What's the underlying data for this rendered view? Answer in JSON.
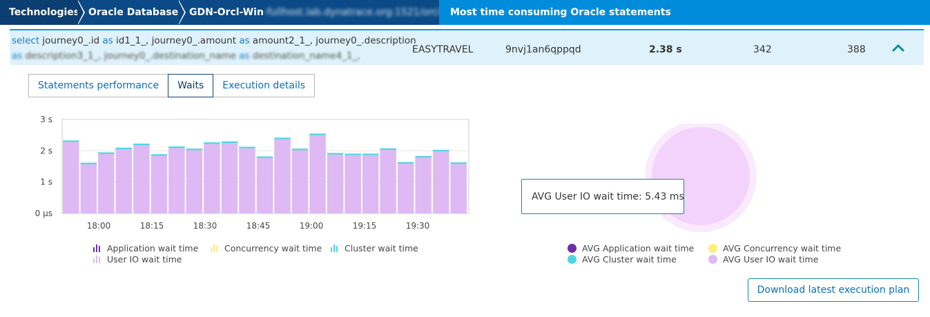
{
  "breadcrumb": {
    "items": [
      {
        "label": "Technologies"
      },
      {
        "label": "Oracle Database"
      },
      {
        "label_prefix": "GDN-Orcl-Win",
        "label_obscured": "-fullhost.lab.dynatrace.org:1521/orcl"
      },
      {
        "label": "Most time consuming Oracle statements"
      }
    ]
  },
  "statement": {
    "sql_line1": [
      {
        "t": "select",
        "kw": true
      },
      {
        "t": " journey0_.id ",
        "kw": false
      },
      {
        "t": "as",
        "kw": true
      },
      {
        "t": " id1_1_, journey0_.amount ",
        "kw": false
      },
      {
        "t": "as",
        "kw": true
      },
      {
        "t": " amount2_1_, journey0_.description",
        "kw": false
      }
    ],
    "sql_line2": [
      {
        "t": "as",
        "kw": true
      },
      {
        "t": " description3_1_, journey0_.destination_name ",
        "kw": false
      },
      {
        "t": "as",
        "kw": true
      },
      {
        "t": " destination_name4_1_,",
        "kw": false
      }
    ],
    "schema": "EASYTRAVEL",
    "sql_id": "9nvj1an6qppqd",
    "total_time": "2.38 s",
    "col_a": "342",
    "col_b": "388"
  },
  "tabs": [
    {
      "label": "Statements performance",
      "active": false
    },
    {
      "label": "Waits",
      "active": true
    },
    {
      "label": "Execution details",
      "active": false
    }
  ],
  "colors": {
    "application": "#6f2da8",
    "concurrency": "#ffee7c",
    "cluster": "#4fd5e0",
    "user_io": "#deb9f3",
    "user_io_light": "#f3d3fb",
    "donut_halo": "#f9eafd"
  },
  "chart_data": {
    "type": "bar",
    "stacked": true,
    "x_ticks": [
      "18:00",
      "18:15",
      "18:30",
      "18:45",
      "19:00",
      "19:15",
      "19:30"
    ],
    "y_ticks": [
      "3 s",
      "2 s",
      "1 s",
      "0 µs"
    ],
    "ylim": [
      0,
      3
    ],
    "grid": true,
    "series": [
      {
        "name": "User IO wait time",
        "values": [
          2.28,
          1.57,
          1.9,
          2.05,
          2.18,
          1.84,
          2.09,
          2.02,
          2.22,
          2.25,
          2.08,
          1.77,
          2.37,
          2.02,
          2.5,
          1.88,
          1.86,
          1.86,
          2.03,
          1.59,
          1.78,
          1.98,
          1.58
        ]
      },
      {
        "name": "Cluster wait time",
        "values": [
          0.05,
          0.05,
          0.05,
          0.05,
          0.05,
          0.05,
          0.05,
          0.05,
          0.05,
          0.05,
          0.05,
          0.05,
          0.05,
          0.05,
          0.05,
          0.05,
          0.05,
          0.05,
          0.05,
          0.05,
          0.05,
          0.05,
          0.05
        ]
      }
    ],
    "legend": [
      {
        "name": "Application wait time",
        "color_key": "application"
      },
      {
        "name": "Concurrency wait time",
        "color_key": "concurrency"
      },
      {
        "name": "Cluster wait time",
        "color_key": "cluster"
      },
      {
        "name": "User IO wait time",
        "color_key": "user_io"
      }
    ]
  },
  "donut": {
    "tooltip_label": "AVG User IO wait time:",
    "tooltip_value": "5.43 ms",
    "legend": [
      {
        "name": "AVG Application wait time",
        "color_key": "application"
      },
      {
        "name": "AVG Concurrency wait time",
        "color_key": "concurrency"
      },
      {
        "name": "AVG Cluster wait time",
        "color_key": "cluster"
      },
      {
        "name": "AVG User IO wait time",
        "color_key": "user_io"
      }
    ]
  },
  "actions": {
    "download_label": "Download latest execution plan"
  }
}
